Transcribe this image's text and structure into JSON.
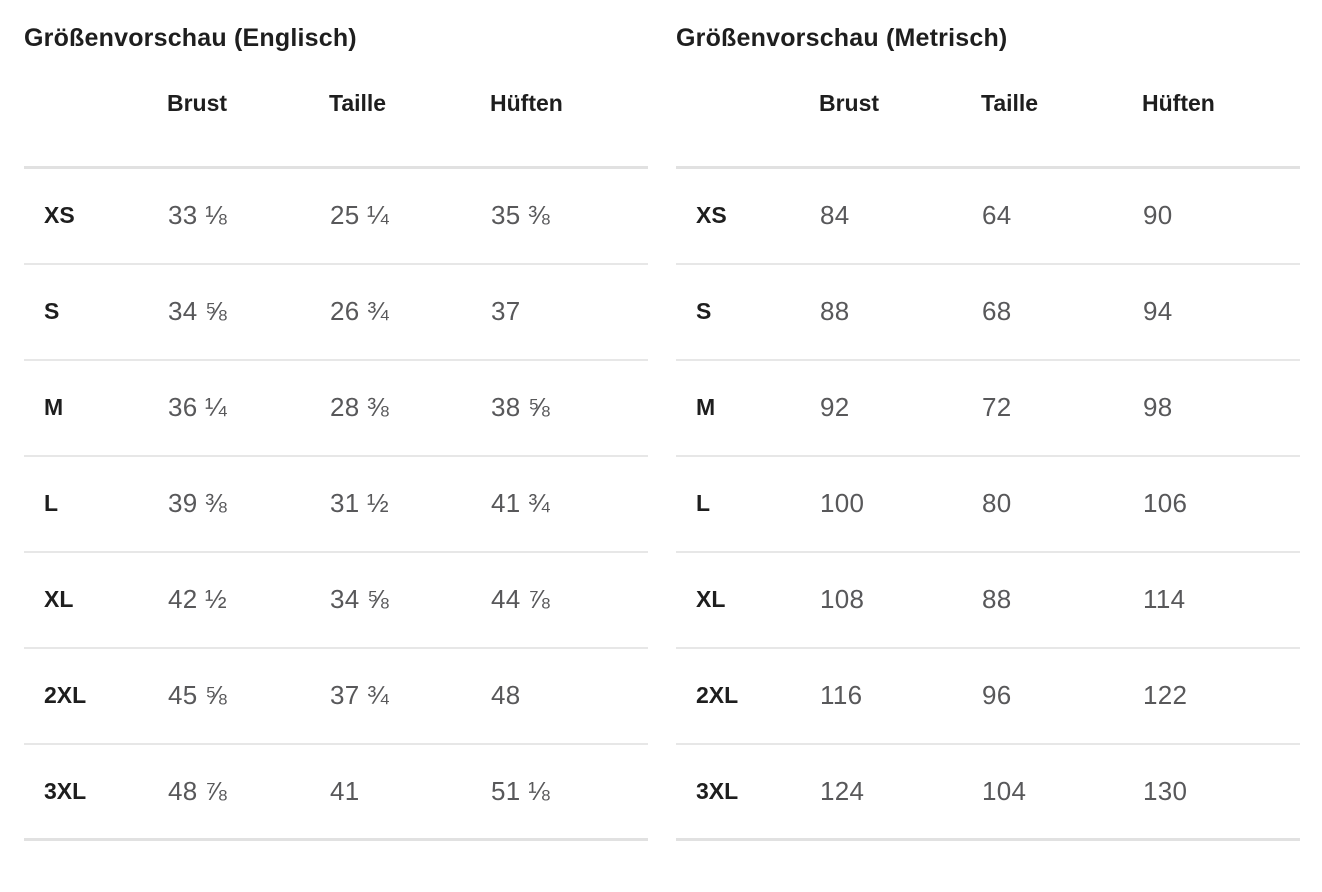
{
  "colors": {
    "background": "#ffffff",
    "heading_text": "#1e1e1e",
    "value_text": "#58585a",
    "divider": "#e1e1e1"
  },
  "tables": [
    {
      "title": "Größenvorschau (Englisch)",
      "columns": [
        "Brust",
        "Taille",
        "Hüften"
      ],
      "rows": [
        {
          "label": "XS",
          "values": [
            "33 ⅛",
            "25 ¼",
            "35 ⅜"
          ]
        },
        {
          "label": "S",
          "values": [
            "34 ⅝",
            "26 ¾",
            "37"
          ]
        },
        {
          "label": "M",
          "values": [
            "36 ¼",
            "28 ⅜",
            "38 ⅝"
          ]
        },
        {
          "label": "L",
          "values": [
            "39 ⅜",
            "31 ½",
            "41 ¾"
          ]
        },
        {
          "label": "XL",
          "values": [
            "42 ½",
            "34 ⅝",
            "44 ⅞"
          ]
        },
        {
          "label": "2XL",
          "values": [
            "45 ⅝",
            "37 ¾",
            "48"
          ]
        },
        {
          "label": "3XL",
          "values": [
            "48 ⅞",
            "41",
            "51 ⅛"
          ]
        }
      ]
    },
    {
      "title": "Größenvorschau (Metrisch)",
      "columns": [
        "Brust",
        "Taille",
        "Hüften"
      ],
      "rows": [
        {
          "label": "XS",
          "values": [
            "84",
            "64",
            "90"
          ]
        },
        {
          "label": "S",
          "values": [
            "88",
            "68",
            "94"
          ]
        },
        {
          "label": "M",
          "values": [
            "92",
            "72",
            "98"
          ]
        },
        {
          "label": "L",
          "values": [
            "100",
            "80",
            "106"
          ]
        },
        {
          "label": "XL",
          "values": [
            "108",
            "88",
            "114"
          ]
        },
        {
          "label": "2XL",
          "values": [
            "116",
            "96",
            "122"
          ]
        },
        {
          "label": "3XL",
          "values": [
            "124",
            "104",
            "130"
          ]
        }
      ]
    }
  ]
}
